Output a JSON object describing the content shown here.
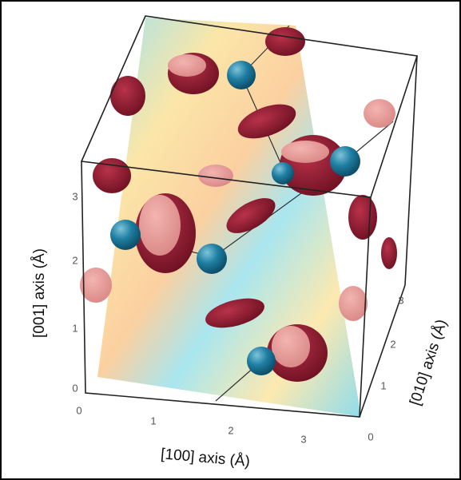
{
  "axes": [
    {
      "label": "[001]  axis (Å)",
      "ticks": [
        0,
        1,
        2,
        3
      ]
    },
    {
      "label": "[100]  axis (Å)",
      "ticks": [
        0,
        1,
        2,
        3
      ]
    },
    {
      "label": "[010]  axis (Å)",
      "ticks": [
        0,
        1,
        2,
        3
      ]
    }
  ]
}
